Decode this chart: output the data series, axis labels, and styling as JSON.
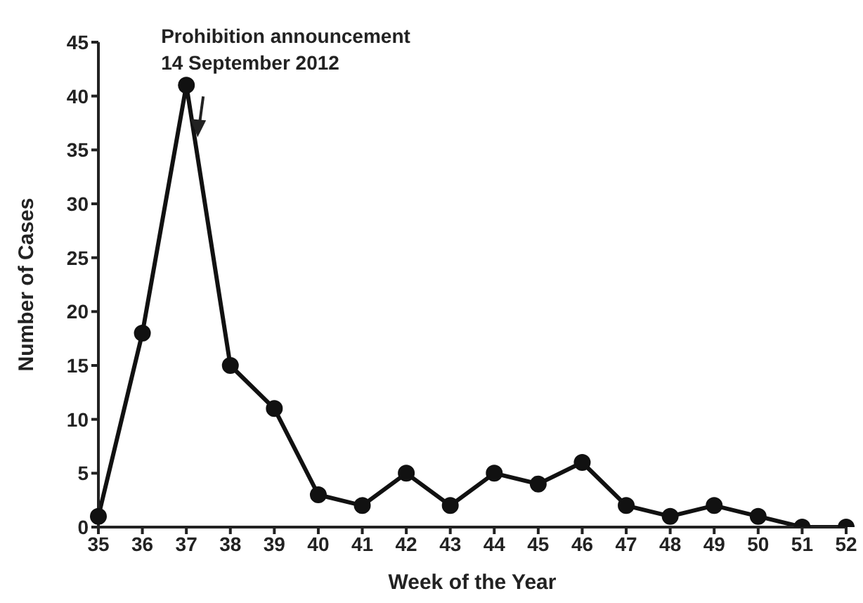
{
  "chart_data": {
    "type": "line",
    "xlabel": "Week of the Year",
    "ylabel": "Number of Cases",
    "categories": [
      "35",
      "36",
      "37",
      "38",
      "39",
      "40",
      "41",
      "42",
      "43",
      "44",
      "45",
      "46",
      "47",
      "48",
      "49",
      "50",
      "51",
      "52"
    ],
    "series": [
      {
        "color": "#111111",
        "values": [
          1,
          18,
          41,
          15,
          11,
          3,
          2,
          5,
          2,
          5,
          4,
          6,
          2,
          1,
          2,
          1,
          0,
          0
        ]
      }
    ],
    "ylim": [
      0,
      45
    ],
    "yticks": [
      0,
      5,
      10,
      15,
      20,
      25,
      30,
      35,
      40,
      45
    ],
    "grid": false,
    "legend": false,
    "marker": "circle",
    "line_style": "solid",
    "annotations": [
      {
        "text": "Prohibition announcement\n14 September 2012",
        "x": "37",
        "y": 41
      }
    ]
  }
}
